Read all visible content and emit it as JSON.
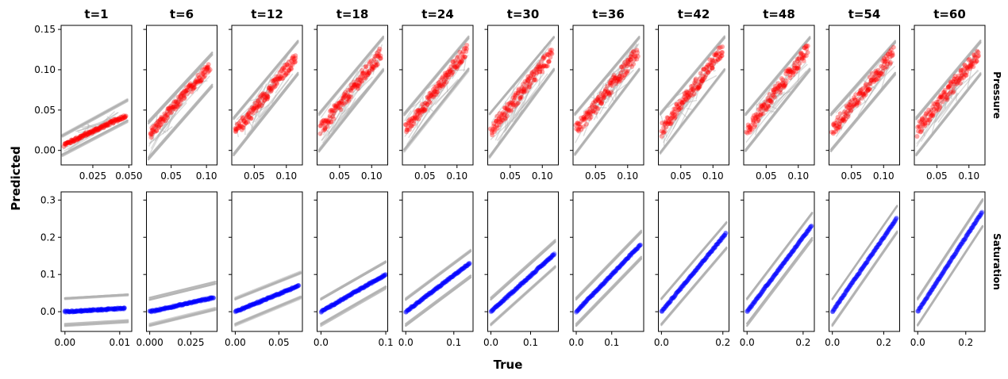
{
  "chart_data": {
    "type": "scatter",
    "xlabel": "True",
    "ylabel": "Predicted",
    "columns": [
      "t=1",
      "t=6",
      "t=12",
      "t=18",
      "t=24",
      "t=30",
      "t=36",
      "t=42",
      "t=48",
      "t=54",
      "t=60"
    ],
    "band_color": "#b0b0b0",
    "rows": [
      {
        "label": "Pressure",
        "color": "#ff0000",
        "ylim": [
          -0.018,
          0.155
        ],
        "yticks": [
          0.0,
          0.05,
          0.1,
          0.15
        ],
        "ytick_labels": [
          "0.00",
          "0.05",
          "0.10",
          "0.15"
        ],
        "panels": [
          {
            "xlim": [
              0.003,
              0.052
            ],
            "xticks": [
              0.025,
              0.05
            ],
            "xtick_labels": [
              "0.025",
              "0.050"
            ],
            "points": {
              "x_range": [
                0.005,
                0.048
              ],
              "y_range": [
                0.007,
                0.043
              ]
            },
            "band": {
              "x_range": [
                0.004,
                0.049
              ],
              "upper": [
                0.018,
                0.062
              ],
              "lower": [
                -0.006,
                0.036
              ]
            },
            "spread": 0.002
          },
          {
            "xlim": [
              0.015,
              0.115
            ],
            "xticks": [
              0.05,
              0.1
            ],
            "xtick_labels": [
              "0.05",
              "0.10"
            ],
            "points": {
              "x_range": [
                0.02,
                0.105
              ],
              "y_range": [
                0.02,
                0.105
              ]
            },
            "band": {
              "x_range": [
                0.018,
                0.108
              ],
              "upper": [
                0.035,
                0.12
              ],
              "lower": [
                -0.01,
                0.08
              ]
            },
            "spread": 0.006
          },
          {
            "xlim": [
              0.015,
              0.125
            ],
            "xticks": [
              0.05,
              0.1
            ],
            "xtick_labels": [
              "0.05",
              "0.10"
            ],
            "points": {
              "x_range": [
                0.02,
                0.115
              ],
              "y_range": [
                0.022,
                0.115
              ]
            },
            "band": {
              "x_range": [
                0.018,
                0.118
              ],
              "upper": [
                0.04,
                0.135
              ],
              "lower": [
                -0.005,
                0.095
              ]
            },
            "spread": 0.007
          },
          {
            "xlim": [
              0.015,
              0.125
            ],
            "xticks": [
              0.05,
              0.1
            ],
            "xtick_labels": [
              "0.05",
              "0.10"
            ],
            "points": {
              "x_range": [
                0.02,
                0.115
              ],
              "y_range": [
                0.025,
                0.12
              ]
            },
            "band": {
              "x_range": [
                0.018,
                0.118
              ],
              "upper": [
                0.045,
                0.14
              ],
              "lower": [
                0.0,
                0.1
              ]
            },
            "spread": 0.008
          },
          {
            "xlim": [
              0.015,
              0.125
            ],
            "xticks": [
              0.05,
              0.1
            ],
            "xtick_labels": [
              "0.05",
              "0.10"
            ],
            "points": {
              "x_range": [
                0.02,
                0.115
              ],
              "y_range": [
                0.025,
                0.125
              ]
            },
            "band": {
              "x_range": [
                0.018,
                0.118
              ],
              "upper": [
                0.045,
                0.14
              ],
              "lower": [
                0.0,
                0.1
              ]
            },
            "spread": 0.007
          },
          {
            "xlim": [
              0.015,
              0.125
            ],
            "xticks": [
              0.05,
              0.1
            ],
            "xtick_labels": [
              "0.05",
              "0.10"
            ],
            "points": {
              "x_range": [
                0.02,
                0.115
              ],
              "y_range": [
                0.025,
                0.12
              ]
            },
            "band": {
              "x_range": [
                0.018,
                0.118
              ],
              "upper": [
                0.045,
                0.14
              ],
              "lower": [
                -0.008,
                0.1
              ]
            },
            "spread": 0.008
          },
          {
            "xlim": [
              0.015,
              0.125
            ],
            "xticks": [
              0.05,
              0.1
            ],
            "xtick_labels": [
              "0.05",
              "0.10"
            ],
            "points": {
              "x_range": [
                0.02,
                0.115
              ],
              "y_range": [
                0.025,
                0.12
              ]
            },
            "band": {
              "x_range": [
                0.018,
                0.118
              ],
              "upper": [
                0.045,
                0.14
              ],
              "lower": [
                -0.005,
                0.1
              ]
            },
            "spread": 0.008
          },
          {
            "xlim": [
              0.015,
              0.125
            ],
            "xticks": [
              0.05,
              0.1
            ],
            "xtick_labels": [
              "0.05",
              "0.10"
            ],
            "points": {
              "x_range": [
                0.02,
                0.115
              ],
              "y_range": [
                0.025,
                0.125
              ]
            },
            "band": {
              "x_range": [
                0.018,
                0.118
              ],
              "upper": [
                0.045,
                0.14
              ],
              "lower": [
                -0.003,
                0.1
              ]
            },
            "spread": 0.008
          },
          {
            "xlim": [
              0.015,
              0.125
            ],
            "xticks": [
              0.05,
              0.1
            ],
            "xtick_labels": [
              "0.05",
              "0.10"
            ],
            "points": {
              "x_range": [
                0.02,
                0.115
              ],
              "y_range": [
                0.025,
                0.125
              ]
            },
            "band": {
              "x_range": [
                0.018,
                0.118
              ],
              "upper": [
                0.045,
                0.14
              ],
              "lower": [
                0.0,
                0.1
              ]
            },
            "spread": 0.008
          },
          {
            "xlim": [
              0.015,
              0.125
            ],
            "xticks": [
              0.05,
              0.1
            ],
            "xtick_labels": [
              "0.05",
              "0.10"
            ],
            "points": {
              "x_range": [
                0.02,
                0.115
              ],
              "y_range": [
                0.025,
                0.12
              ]
            },
            "band": {
              "x_range": [
                0.018,
                0.118
              ],
              "upper": [
                0.045,
                0.135
              ],
              "lower": [
                0.0,
                0.095
              ]
            },
            "spread": 0.008
          },
          {
            "xlim": [
              0.015,
              0.125
            ],
            "xticks": [
              0.05,
              0.1
            ],
            "xtick_labels": [
              "0.05",
              "0.10"
            ],
            "points": {
              "x_range": [
                0.02,
                0.115
              ],
              "y_range": [
                0.025,
                0.12
              ]
            },
            "band": {
              "x_range": [
                0.018,
                0.118
              ],
              "upper": [
                0.04,
                0.135
              ],
              "lower": [
                -0.005,
                0.095
              ]
            },
            "spread": 0.008
          }
        ]
      },
      {
        "label": "Saturation",
        "color": "#0000ff",
        "ylim": [
          -0.053,
          0.322
        ],
        "yticks": [
          0.0,
          0.1,
          0.2,
          0.3
        ],
        "ytick_labels": [
          "0.0",
          "0.1",
          "0.2",
          "0.3"
        ],
        "panels": [
          {
            "xlim": [
              -0.0007,
              0.0122
            ],
            "xticks": [
              0.0,
              0.01
            ],
            "xtick_labels": [
              "0.00",
              "0.01"
            ],
            "points": {
              "x_range": [
                0.0,
                0.011
              ],
              "y_range": [
                0.0,
                0.009
              ]
            },
            "band": {
              "x_range": [
                0.0,
                0.0115
              ],
              "upper": [
                0.035,
                0.045
              ],
              "lower": [
                -0.035,
                -0.025
              ]
            },
            "spread": 0.002
          },
          {
            "xlim": [
              -0.002,
              0.041
            ],
            "xticks": [
              0.0,
              0.025
            ],
            "xtick_labels": [
              "0.000",
              "0.025"
            ],
            "points": {
              "x_range": [
                0.0,
                0.039
              ],
              "y_range": [
                0.0,
                0.038
              ]
            },
            "band": {
              "x_range": [
                0.0,
                0.04
              ],
              "upper": [
                0.035,
                0.078
              ],
              "lower": [
                -0.035,
                0.008
              ]
            },
            "spread": 0.002
          },
          {
            "xlim": [
              -0.004,
              0.077
            ],
            "xticks": [
              0.0,
              0.05
            ],
            "xtick_labels": [
              "0.00",
              "0.05"
            ],
            "points": {
              "x_range": [
                0.0,
                0.073
              ],
              "y_range": [
                0.0,
                0.07
              ]
            },
            "band": {
              "x_range": [
                0.0,
                0.075
              ],
              "upper": [
                0.035,
                0.105
              ],
              "lower": [
                -0.035,
                0.038
              ]
            },
            "spread": 0.002
          },
          {
            "xlim": [
              -0.006,
              0.103
            ],
            "xticks": [
              0.0,
              0.1
            ],
            "xtick_labels": [
              "0.0",
              "0.1"
            ],
            "points": {
              "x_range": [
                0.0,
                0.1
              ],
              "y_range": [
                0.0,
                0.1
              ]
            },
            "band": {
              "x_range": [
                0.0,
                0.1
              ],
              "upper": [
                0.035,
                0.135
              ],
              "lower": [
                -0.035,
                0.065
              ]
            },
            "spread": 0.002
          },
          {
            "xlim": [
              -0.007,
              0.14
            ],
            "xticks": [
              0.0,
              0.1
            ],
            "xtick_labels": [
              "0.0",
              "0.1"
            ],
            "points": {
              "x_range": [
                0.0,
                0.133
              ],
              "y_range": [
                0.0,
                0.13
              ]
            },
            "band": {
              "x_range": [
                0.0,
                0.135
              ],
              "upper": [
                0.035,
                0.165
              ],
              "lower": [
                -0.035,
                0.095
              ]
            },
            "spread": 0.002
          },
          {
            "xlim": [
              -0.008,
              0.17
            ],
            "xticks": [
              0.0,
              0.1
            ],
            "xtick_labels": [
              "0.0",
              "0.1"
            ],
            "points": {
              "x_range": [
                0.0,
                0.16
              ],
              "y_range": [
                0.0,
                0.155
              ]
            },
            "band": {
              "x_range": [
                0.0,
                0.162
              ],
              "upper": [
                0.035,
                0.19
              ],
              "lower": [
                -0.035,
                0.12
              ]
            },
            "spread": 0.002
          },
          {
            "xlim": [
              -0.009,
              0.19
            ],
            "xticks": [
              0.0,
              0.1
            ],
            "xtick_labels": [
              "0.0",
              "0.1"
            ],
            "points": {
              "x_range": [
                0.0,
                0.181
              ],
              "y_range": [
                0.0,
                0.18
              ]
            },
            "band": {
              "x_range": [
                0.0,
                0.183
              ],
              "upper": [
                0.035,
                0.215
              ],
              "lower": [
                -0.035,
                0.145
              ]
            },
            "spread": 0.002
          },
          {
            "xlim": [
              -0.01,
              0.22
            ],
            "xticks": [
              0.0,
              0.2
            ],
            "xtick_labels": [
              "0.0",
              "0.2"
            ],
            "points": {
              "x_range": [
                0.0,
                0.21
              ],
              "y_range": [
                0.0,
                0.21
              ]
            },
            "band": {
              "x_range": [
                0.0,
                0.212
              ],
              "upper": [
                0.035,
                0.24
              ],
              "lower": [
                -0.035,
                0.17
              ]
            },
            "spread": 0.002
          },
          {
            "xlim": [
              -0.012,
              0.24
            ],
            "xticks": [
              0.0,
              0.2
            ],
            "xtick_labels": [
              "0.0",
              "0.2"
            ],
            "points": {
              "x_range": [
                0.0,
                0.23
              ],
              "y_range": [
                0.0,
                0.23
              ]
            },
            "band": {
              "x_range": [
                0.0,
                0.232
              ],
              "upper": [
                0.035,
                0.265
              ],
              "lower": [
                -0.035,
                0.195
              ]
            },
            "spread": 0.002
          },
          {
            "xlim": [
              -0.013,
              0.262
            ],
            "xticks": [
              0.0,
              0.2
            ],
            "xtick_labels": [
              "0.0",
              "0.2"
            ],
            "points": {
              "x_range": [
                0.0,
                0.25
              ],
              "y_range": [
                0.0,
                0.25
              ]
            },
            "band": {
              "x_range": [
                0.0,
                0.252
              ],
              "upper": [
                0.035,
                0.285
              ],
              "lower": [
                -0.035,
                0.215
              ]
            },
            "spread": 0.002
          },
          {
            "xlim": [
              -0.014,
              0.28
            ],
            "xticks": [
              0.0,
              0.2
            ],
            "xtick_labels": [
              "0.0",
              "0.2"
            ],
            "points": {
              "x_range": [
                0.0,
                0.268
              ],
              "y_range": [
                0.0,
                0.268
              ]
            },
            "band": {
              "x_range": [
                0.0,
                0.27
              ],
              "upper": [
                0.035,
                0.3
              ],
              "lower": [
                -0.035,
                0.23
              ]
            },
            "spread": 0.002
          }
        ]
      }
    ]
  }
}
